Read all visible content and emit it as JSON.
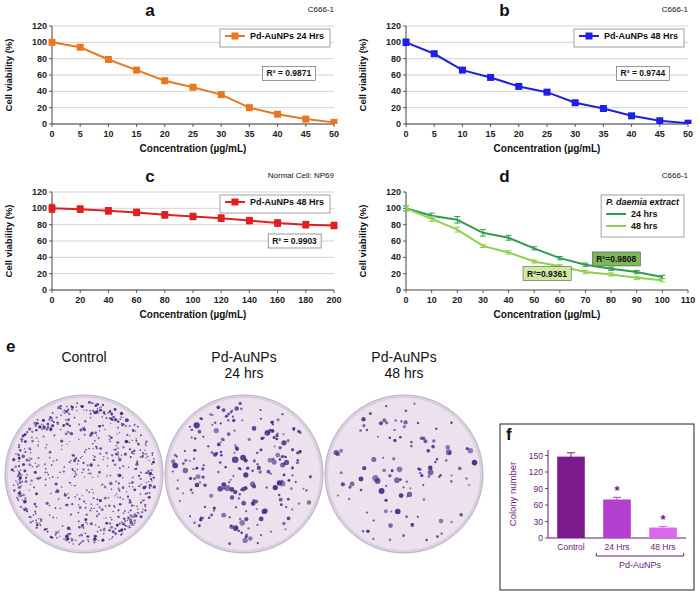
{
  "chart_data": [
    {
      "type": "line",
      "letter": "a",
      "title": "C666-1",
      "x": [
        0,
        5,
        10,
        15,
        20,
        25,
        30,
        35,
        40,
        45,
        50
      ],
      "xlim": [
        0,
        50
      ],
      "xticks": [
        0,
        5,
        10,
        15,
        20,
        25,
        30,
        35,
        40,
        45,
        50
      ],
      "ylim": [
        0,
        120
      ],
      "yticks": [
        0,
        20,
        40,
        60,
        80,
        100,
        120
      ],
      "x_label": "Concentration (µg/mL)",
      "y_label": "Cell viability (%)",
      "grid": true,
      "legend": "top-right",
      "series": [
        {
          "name": "Pd-AuNPs 24 Hrs",
          "color": "#e87722",
          "marker": "square",
          "values": [
            100,
            94,
            79,
            66,
            53,
            45,
            36,
            20,
            12,
            6,
            2
          ],
          "errors": [
            3,
            2,
            2,
            2,
            2,
            2,
            2,
            2,
            1,
            1,
            1
          ]
        }
      ],
      "annotations": [
        {
          "text": "R² = 0.9871",
          "x": 42,
          "y": 62
        }
      ]
    },
    {
      "type": "line",
      "letter": "b",
      "title": "C666-1",
      "x": [
        0,
        5,
        10,
        15,
        20,
        25,
        30,
        35,
        40,
        45,
        50
      ],
      "xlim": [
        0,
        50
      ],
      "xticks": [
        0,
        5,
        10,
        15,
        20,
        25,
        30,
        35,
        40,
        45,
        50
      ],
      "ylim": [
        0,
        120
      ],
      "yticks": [
        0,
        20,
        40,
        60,
        80,
        100,
        120
      ],
      "x_label": "Concentration (µg/mL)",
      "y_label": "Cell viability (%)",
      "grid": true,
      "legend": "top-right",
      "series": [
        {
          "name": "Pd-AuNPs 48 Hrs",
          "color": "#1f1fe0",
          "marker": "square",
          "values": [
            100,
            86,
            66,
            57,
            46,
            39,
            26,
            19,
            10,
            4,
            1
          ],
          "errors": [
            4,
            3,
            3,
            2,
            2,
            2,
            2,
            1,
            1,
            1,
            1
          ]
        }
      ],
      "annotations": [
        {
          "text": "R² = 0.9744",
          "x": 42,
          "y": 62
        }
      ]
    },
    {
      "type": "line",
      "letter": "c",
      "title": "Normal Cell: NP69",
      "x": [
        0,
        20,
        40,
        60,
        80,
        100,
        120,
        140,
        160,
        180,
        200
      ],
      "xlim": [
        0,
        200
      ],
      "xticks": [
        0,
        20,
        40,
        60,
        80,
        100,
        120,
        140,
        160,
        180,
        200
      ],
      "ylim": [
        0,
        120
      ],
      "yticks": [
        0,
        20,
        40,
        60,
        80,
        100,
        120
      ],
      "x_label": "Concentration (µg/mL)",
      "y_label": "Cell viability (%)",
      "grid": true,
      "legend": "top-right",
      "series": [
        {
          "name": "Pd-AuNPs 48 Hrs",
          "color": "#e02020",
          "marker": "square",
          "values": [
            100,
            99,
            97,
            95,
            92,
            90,
            88,
            85,
            82,
            80,
            79
          ],
          "errors": [
            5,
            4,
            4,
            4,
            4,
            4,
            4,
            4,
            4,
            4,
            4
          ]
        }
      ],
      "annotations": [
        {
          "text": "R² = 0.9903",
          "x": 172,
          "y": 60
        }
      ]
    },
    {
      "type": "line",
      "letter": "d",
      "title": "C666-1",
      "x": [
        0,
        10,
        20,
        30,
        40,
        50,
        60,
        70,
        80,
        90,
        100
      ],
      "xlim": [
        0,
        110
      ],
      "xticks": [
        0,
        10,
        20,
        30,
        40,
        50,
        60,
        70,
        80,
        90,
        100,
        110
      ],
      "ylim": [
        0,
        120
      ],
      "yticks": [
        0,
        20,
        40,
        60,
        80,
        100,
        120
      ],
      "x_label": "Concentration (µg/mL)",
      "y_label": "Cell viability (%)",
      "grid": false,
      "legend": "top-right",
      "legend_title": "P. daemia extract",
      "series": [
        {
          "name": "24 hrs",
          "color": "#2e9e4e",
          "marker": "none",
          "values": [
            100,
            91,
            86,
            70,
            64,
            51,
            39,
            31,
            26,
            22,
            16
          ],
          "errors": [
            3,
            3,
            4,
            4,
            3,
            2,
            2,
            2,
            2,
            2,
            2
          ]
        },
        {
          "name": "48 hrs",
          "color": "#8fd04f",
          "marker": "none",
          "values": [
            100,
            87,
            74,
            54,
            46,
            35,
            29,
            22,
            19,
            15,
            12
          ],
          "errors": [
            3,
            3,
            3,
            2,
            2,
            2,
            2,
            2,
            2,
            2,
            2
          ]
        }
      ],
      "annotations": [
        {
          "text": "R²=0.9808",
          "x": 82,
          "y": 38,
          "color": "#7cb85a"
        },
        {
          "text": "R²=0.9361",
          "x": 55,
          "y": 20,
          "color": "#cfeaa0"
        }
      ]
    },
    {
      "type": "bar",
      "letter": "f",
      "categories": [
        "Control",
        "24 Hrs",
        "48 Hrs"
      ],
      "values": [
        148,
        70,
        19
      ],
      "errors": [
        7,
        4,
        2
      ],
      "colors": [
        "#7a1a8c",
        "#b23fcf",
        "#d968ea"
      ],
      "ylim": [
        0,
        160
      ],
      "yticks": [
        0,
        30,
        60,
        90,
        120,
        150
      ],
      "y_label": "Colony number",
      "group_labels": [
        {
          "label": "Pd-AuNPs",
          "categories": [
            1,
            2
          ]
        }
      ],
      "significance_labels": [
        null,
        "*",
        "*"
      ]
    }
  ],
  "panel_e": {
    "letter": "e",
    "plate_labels": [
      "Control",
      "Pd-AuNPs 24 hrs",
      "Pd-AuNPs 48 hrs"
    ]
  }
}
